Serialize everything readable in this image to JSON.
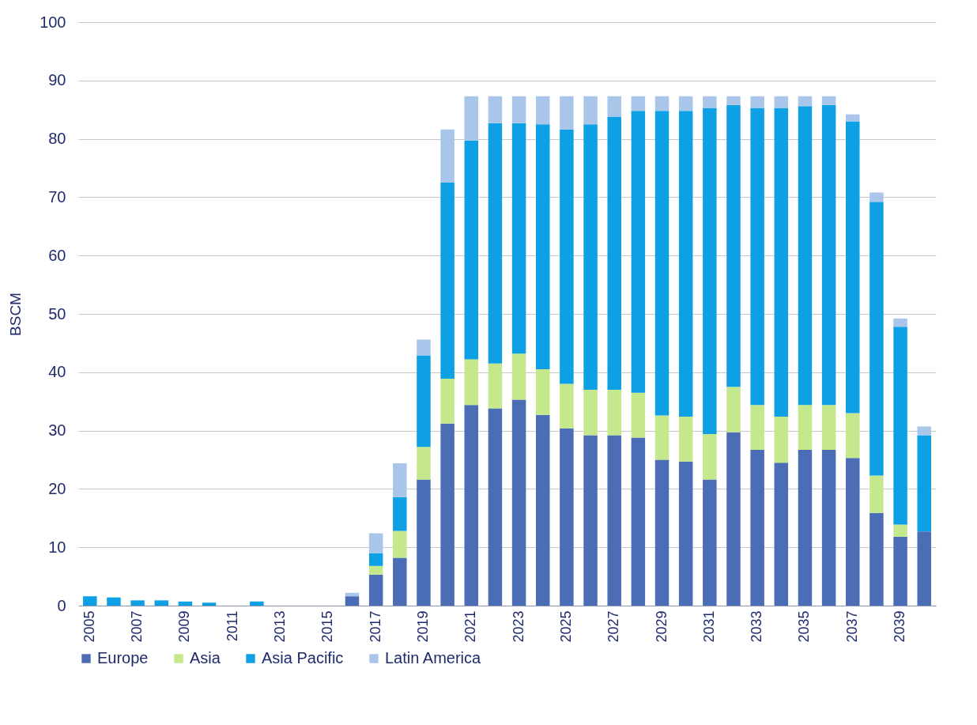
{
  "chart_data": {
    "type": "bar",
    "stacked": true,
    "ylabel": "BSCM",
    "ylim": [
      0,
      100
    ],
    "yticks": [
      0,
      10,
      20,
      30,
      40,
      50,
      60,
      70,
      80,
      90,
      100
    ],
    "grid": "y",
    "legend": "bottom",
    "categories": [
      "2005",
      null,
      "2007",
      null,
      "2009",
      null,
      "2011",
      null,
      "2013",
      null,
      "2015",
      null,
      "2017",
      null,
      "2019",
      null,
      "2021",
      null,
      "2023",
      null,
      "2025",
      null,
      "2027",
      null,
      "2029",
      null,
      "2031",
      null,
      "2033",
      null,
      "2035",
      null,
      "2037",
      null,
      "2039",
      null
    ],
    "series": [
      {
        "name": "Europe",
        "color": "#4a6db5",
        "values": [
          0,
          0,
          0,
          0,
          0,
          0,
          0,
          0,
          0,
          0,
          0,
          1.6,
          5.3,
          8.2,
          21.6,
          31.2,
          34.4,
          33.8,
          35.3,
          32.7,
          30.4,
          29.2,
          29.2,
          28.8,
          25.0,
          24.7,
          21.6,
          29.7,
          26.7,
          24.5,
          26.7,
          26.7,
          25.3,
          15.9,
          11.8,
          12.7
        ]
      },
      {
        "name": "Asia",
        "color": "#c4e88b",
        "values": [
          0,
          0,
          0,
          0,
          0,
          0,
          0,
          0,
          0,
          0,
          0,
          0,
          1.5,
          4.6,
          5.6,
          7.7,
          7.8,
          7.7,
          7.9,
          7.8,
          7.6,
          7.8,
          7.8,
          7.7,
          7.6,
          7.7,
          7.8,
          7.8,
          7.7,
          7.9,
          7.7,
          7.7,
          7.7,
          6.4,
          2.1,
          0
        ]
      },
      {
        "name": "Asia Pacific",
        "color": "#0ea0e4",
        "values": [
          1.6,
          1.4,
          0.9,
          0.9,
          0.7,
          0.5,
          0,
          0.7,
          0,
          0,
          0,
          0,
          2.2,
          5.8,
          15.7,
          33.6,
          37.5,
          41.2,
          39.5,
          42.0,
          43.6,
          45.5,
          46.8,
          48.3,
          52.2,
          52.4,
          55.9,
          48.3,
          50.9,
          52.9,
          51.2,
          51.4,
          50.0,
          46.9,
          33.9,
          16.5
        ]
      },
      {
        "name": "Latin America",
        "color": "#a9c6ea",
        "values": [
          0,
          0,
          0,
          0,
          0,
          0,
          0,
          0,
          0,
          0,
          0,
          0.6,
          3.4,
          5.8,
          2.7,
          9.1,
          7.6,
          4.6,
          4.6,
          4.8,
          5.7,
          4.8,
          3.5,
          2.5,
          2.5,
          2.5,
          2.0,
          1.5,
          2.0,
          2.0,
          1.7,
          1.5,
          1.2,
          1.6,
          1.4,
          1.5
        ]
      }
    ]
  }
}
